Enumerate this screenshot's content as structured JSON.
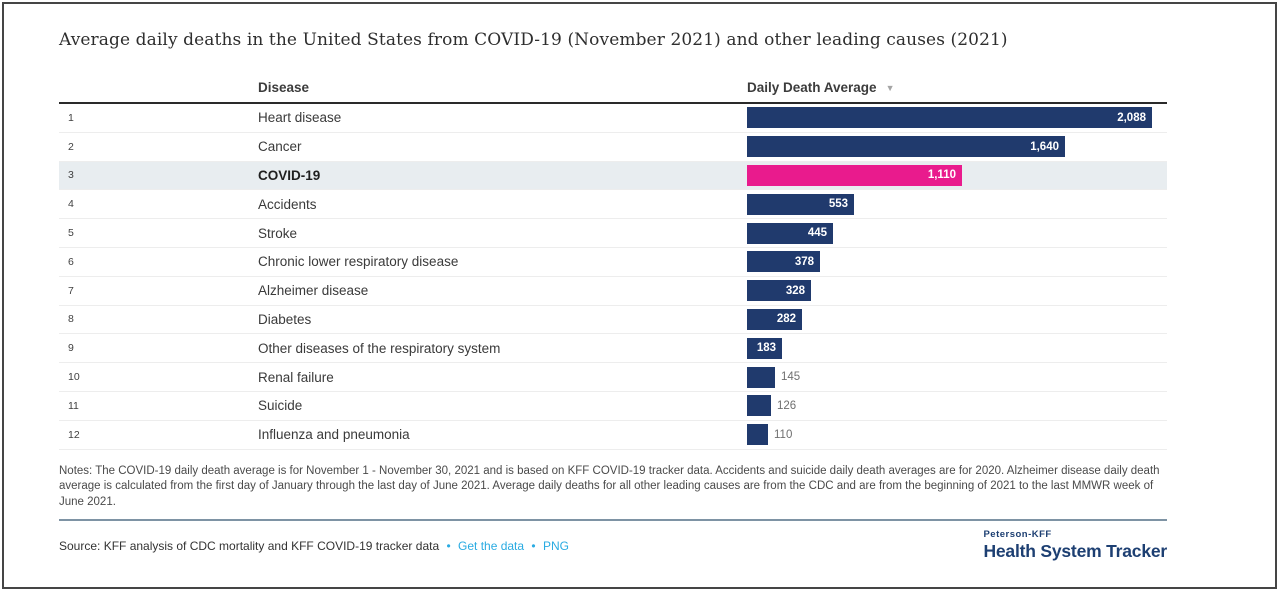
{
  "page": {
    "title": "Average daily deaths in the United States from COVID-19 (November 2021) and other leading causes (2021)"
  },
  "table": {
    "columns": {
      "disease": "Disease",
      "value": "Daily Death Average"
    },
    "sort_icon": "▼",
    "rows": [
      {
        "rank": "1",
        "disease": "Heart disease",
        "value": 2088,
        "label": "2,088",
        "highlight": false
      },
      {
        "rank": "2",
        "disease": "Cancer",
        "value": 1640,
        "label": "1,640",
        "highlight": false
      },
      {
        "rank": "3",
        "disease": "COVID-19",
        "value": 1110,
        "label": "1,110",
        "highlight": true
      },
      {
        "rank": "4",
        "disease": "Accidents",
        "value": 553,
        "label": "553",
        "highlight": false
      },
      {
        "rank": "5",
        "disease": "Stroke",
        "value": 445,
        "label": "445",
        "highlight": false
      },
      {
        "rank": "6",
        "disease": "Chronic lower respiratory disease",
        "value": 378,
        "label": "378",
        "highlight": false
      },
      {
        "rank": "7",
        "disease": "Alzheimer disease",
        "value": 328,
        "label": "328",
        "highlight": false
      },
      {
        "rank": "8",
        "disease": "Diabetes",
        "value": 282,
        "label": "282",
        "highlight": false
      },
      {
        "rank": "9",
        "disease": "Other diseases of the respiratory system",
        "value": 183,
        "label": "183",
        "highlight": false
      },
      {
        "rank": "10",
        "disease": "Renal failure",
        "value": 145,
        "label": "145",
        "highlight": false
      },
      {
        "rank": "11",
        "disease": "Suicide",
        "value": 126,
        "label": "126",
        "highlight": false
      },
      {
        "rank": "12",
        "disease": "Influenza and pneumonia",
        "value": 110,
        "label": "110",
        "highlight": false
      }
    ]
  },
  "notes": {
    "text": "Notes: The COVID-19 daily death average is for November 1 - November 30, 2021 and is based on KFF COVID-19 tracker data. Accidents and suicide daily death averages are for 2020. Alzheimer disease daily death average is calculated from the first day of January through the last day of June 2021. Average daily deaths for all other leading causes are from the CDC and are from the beginning of 2021 to the last MMWR week of June 2021."
  },
  "source": {
    "text": "Source: KFF analysis of CDC mortality and KFF COVID-19 tracker data",
    "separator": "•",
    "links": [
      {
        "label": "Get the data"
      },
      {
        "label": "PNG"
      }
    ]
  },
  "footer_logo": {
    "top": "Peterson-KFF",
    "bottom": "Health System Tracker"
  },
  "colors": {
    "bar": "#203a6d",
    "bar_highlight": "#e91b8d",
    "row_highlight_bg": "#e8edf0",
    "link": "#29abe2",
    "logo_navy": "#1d3f72",
    "divider_slate": "#7e93a4"
  },
  "chart_data": {
    "type": "bar",
    "orientation": "horizontal",
    "title": "Average daily deaths in the United States from COVID-19 (November 2021) and other leading causes (2021)",
    "xlabel": "Daily Death Average",
    "ylabel": "Disease",
    "categories": [
      "Heart disease",
      "Cancer",
      "COVID-19",
      "Accidents",
      "Stroke",
      "Chronic lower respiratory disease",
      "Alzheimer disease",
      "Diabetes",
      "Other diseases of the respiratory system",
      "Renal failure",
      "Suicide",
      "Influenza and pneumonia"
    ],
    "values": [
      2088,
      1640,
      1110,
      553,
      445,
      378,
      328,
      282,
      183,
      145,
      126,
      110
    ],
    "value_labels": [
      "2,088",
      "1,640",
      "1,110",
      "553",
      "445",
      "378",
      "328",
      "282",
      "183",
      "145",
      "126",
      "110"
    ],
    "highlight_category": "COVID-19",
    "sort": "descending",
    "xmax": 2088,
    "legend": "none",
    "grid": "off"
  }
}
